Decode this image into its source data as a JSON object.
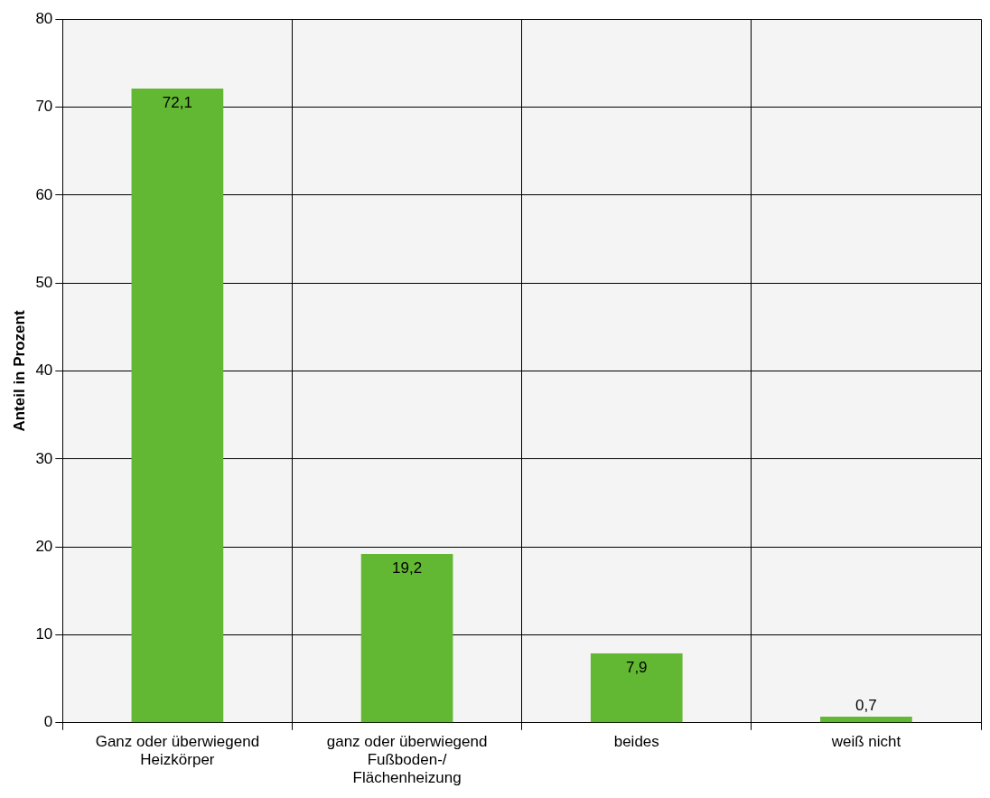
{
  "chart_data": {
    "type": "bar",
    "ylabel": "Anteil in Prozent",
    "categories": [
      "Ganz oder überwiegend\nHeizkörper",
      "ganz oder überwiegend\nFußboden-/\nFlächenheizung",
      "beides",
      "weiß nicht"
    ],
    "values": [
      72.1,
      19.2,
      7.9,
      0.7
    ],
    "value_labels": [
      "72,1",
      "19,2",
      "7,9",
      "0,7"
    ],
    "color": "#62b832",
    "ylim": [
      0,
      80
    ],
    "yticks": [
      0,
      10,
      20,
      30,
      40,
      50,
      60,
      70,
      80
    ],
    "grid": true,
    "legend": false
  }
}
